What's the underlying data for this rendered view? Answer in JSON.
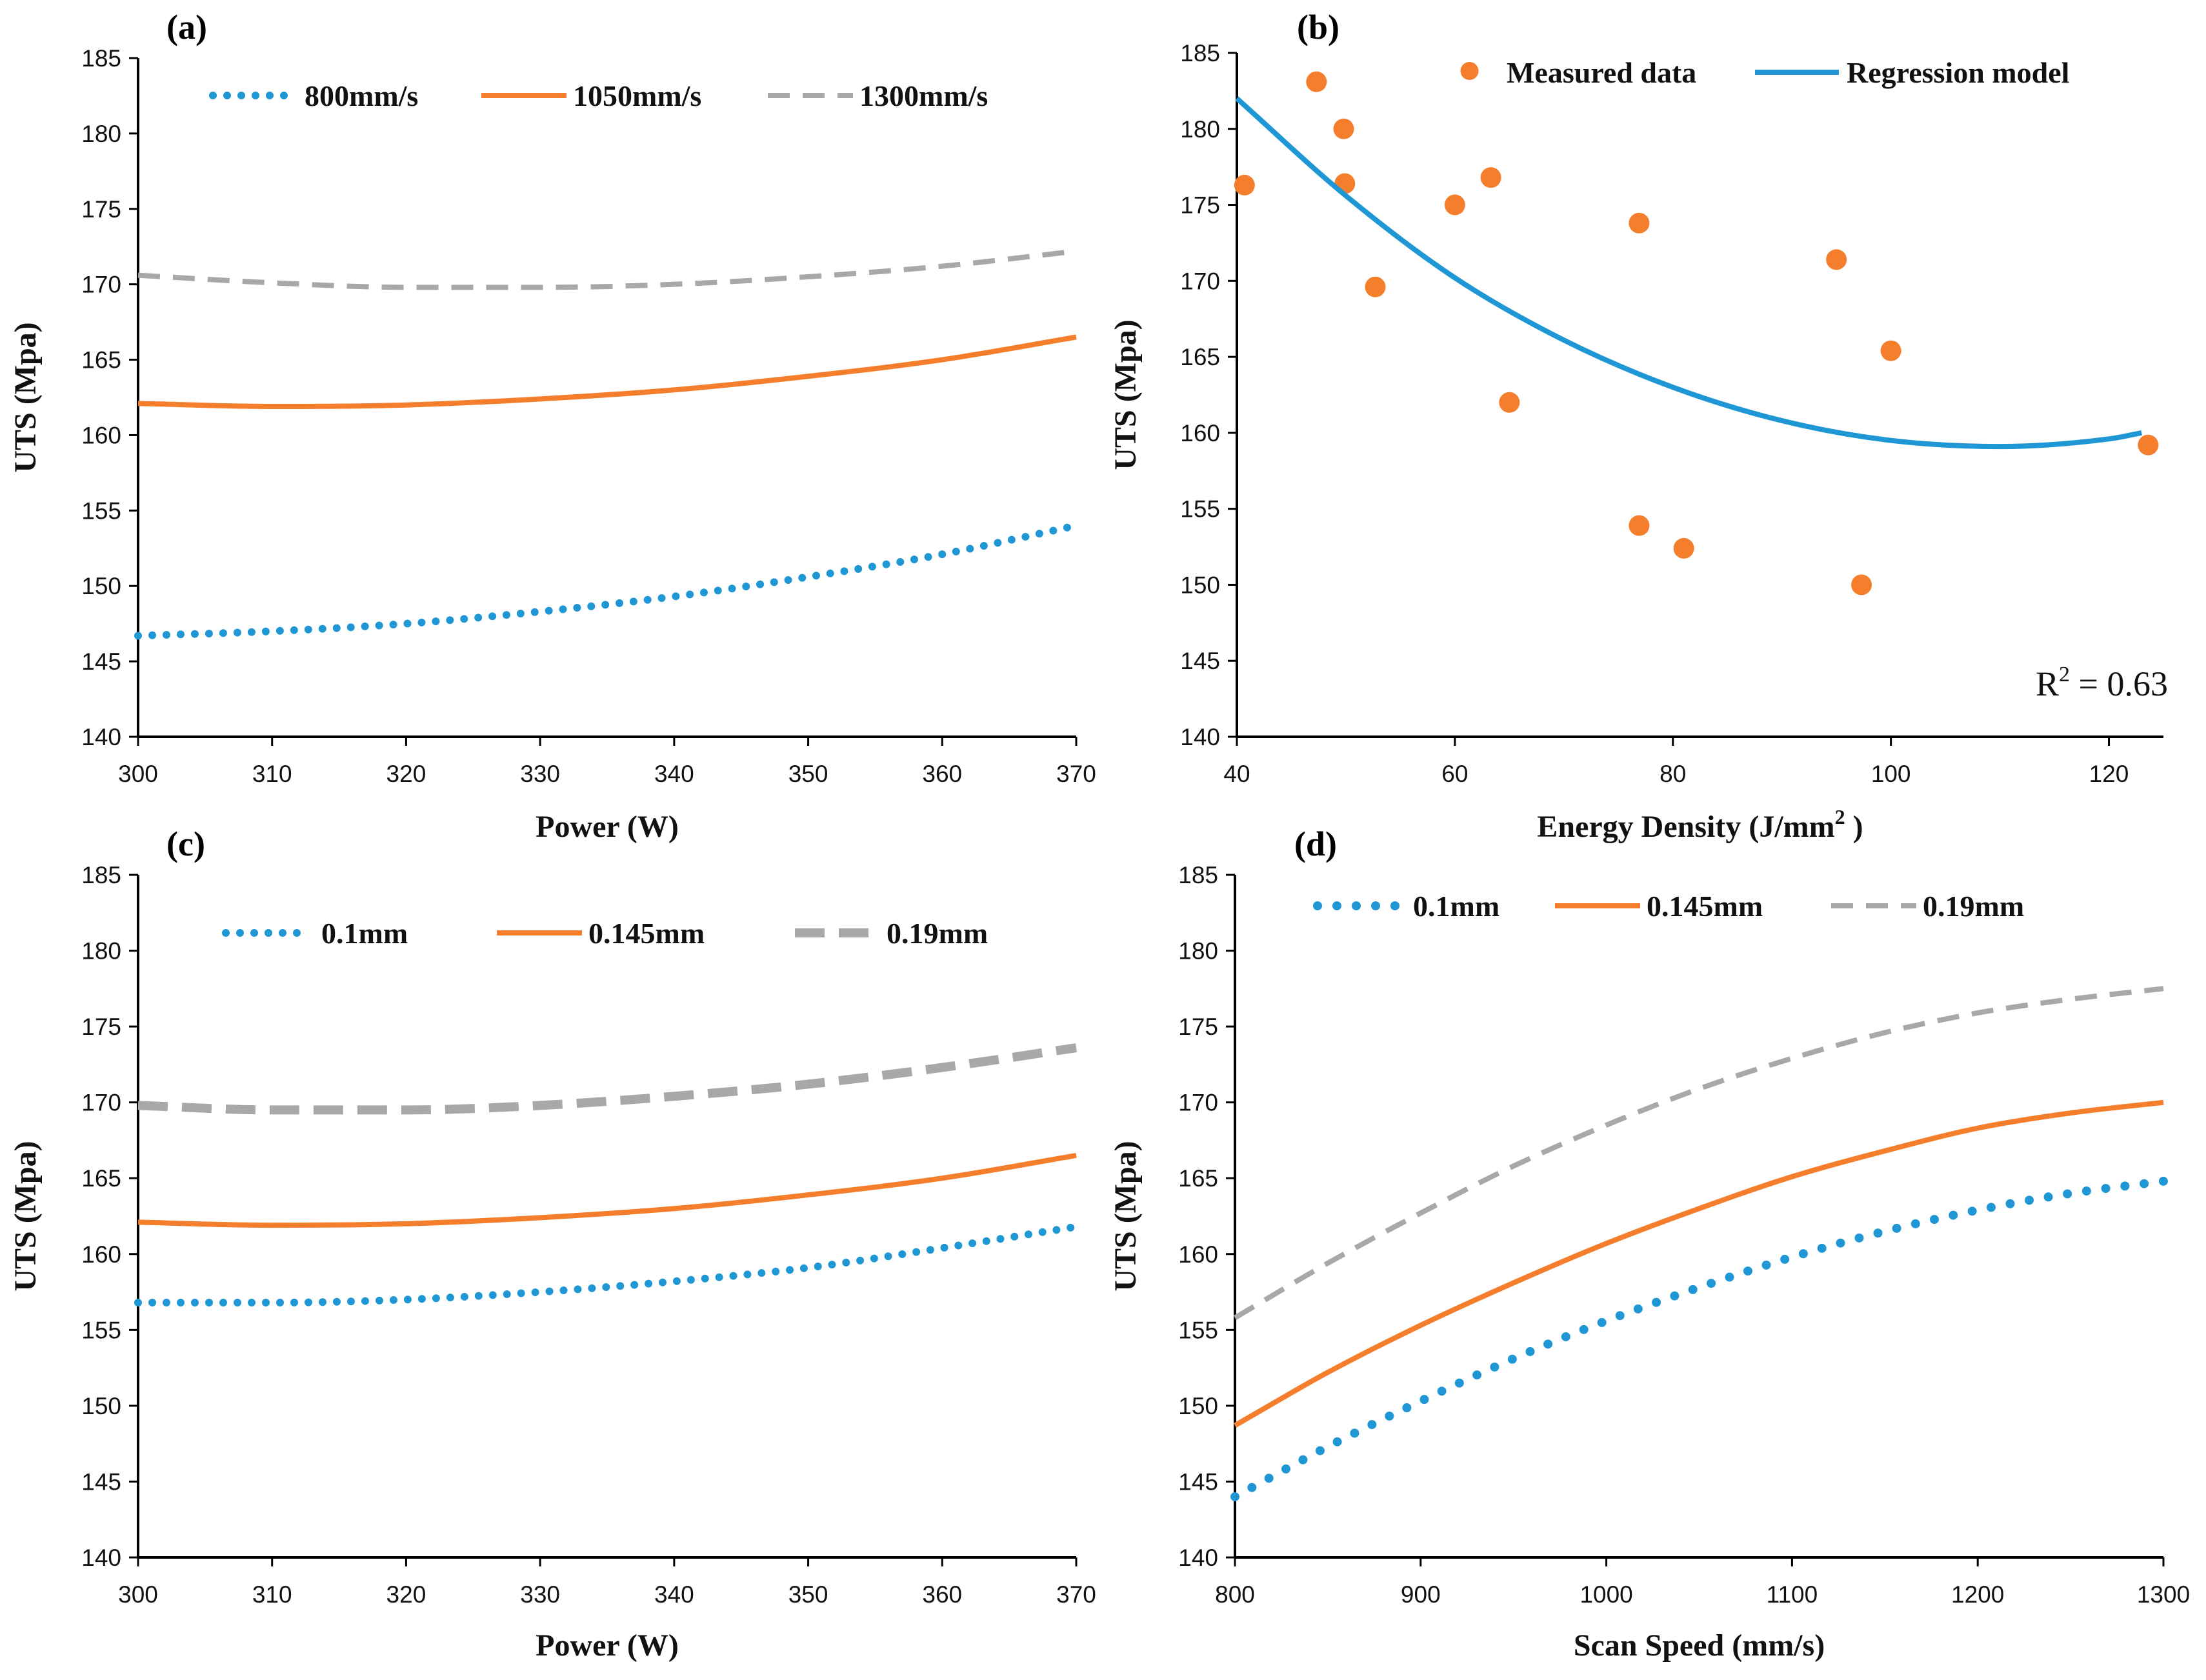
{
  "colors": {
    "blue": "#1f97d4",
    "orange": "#f47e2b",
    "gray": "#a8a8a8",
    "axis": "#000000"
  },
  "chart_data": [
    {
      "id": "a",
      "panel_label": "(a)",
      "type": "line",
      "xlabel": "Power (W)",
      "ylabel": "UTS (Mpa)",
      "xlim": [
        300,
        370
      ],
      "ylim": [
        140,
        185
      ],
      "xticks": [
        300,
        310,
        320,
        330,
        340,
        350,
        360,
        370
      ],
      "yticks": [
        140,
        145,
        150,
        155,
        160,
        165,
        170,
        175,
        180,
        185
      ],
      "legend_position": "top",
      "series": [
        {
          "name": "800mm/s",
          "style": "dotted",
          "color": "#1f97d4",
          "x": [
            300,
            310,
            320,
            330,
            340,
            350,
            360,
            370
          ],
          "y": [
            146.7,
            147.0,
            147.5,
            148.3,
            149.3,
            150.6,
            152.1,
            154.0
          ]
        },
        {
          "name": "1050mm/s",
          "style": "solid",
          "color": "#f47e2b",
          "x": [
            300,
            310,
            320,
            330,
            340,
            350,
            360,
            370
          ],
          "y": [
            162.1,
            161.9,
            162.0,
            162.4,
            163.0,
            163.9,
            165.0,
            166.5
          ]
        },
        {
          "name": "1300mm/s",
          "style": "dashed",
          "color": "#a8a8a8",
          "x": [
            300,
            310,
            320,
            330,
            340,
            350,
            360,
            370
          ],
          "y": [
            170.6,
            170.1,
            169.8,
            169.8,
            170.0,
            170.5,
            171.2,
            172.2
          ]
        }
      ]
    },
    {
      "id": "b",
      "panel_label": "(b)",
      "type": "scatter",
      "xlabel": "Energy  Density (J/mm",
      "xlabel_sup": "2",
      "xlabel_end": " )",
      "ylabel": "UTS (Mpa)",
      "xlim": [
        40,
        125
      ],
      "ylim": [
        140,
        185
      ],
      "xticks": [
        40,
        60,
        80,
        100,
        120
      ],
      "yticks": [
        140,
        145,
        150,
        155,
        160,
        165,
        170,
        175,
        180,
        185
      ],
      "legend_position": "top",
      "annotation": {
        "prefix": "R",
        "sup": "2",
        "suffix": " = 0.63"
      },
      "series": [
        {
          "name": "Measured data",
          "style": "markers",
          "color": "#f47e2b",
          "x": [
            40.7,
            47.3,
            49.8,
            49.9,
            52.7,
            60.0,
            63.3,
            65.0,
            76.9,
            76.9,
            81.0,
            95.0,
            97.3,
            100.0,
            123.6
          ],
          "y": [
            176.3,
            183.1,
            180.0,
            176.4,
            169.6,
            175.0,
            176.8,
            162.0,
            173.8,
            153.9,
            152.4,
            171.4,
            150.0,
            165.4,
            159.2
          ]
        },
        {
          "name": "Regression model",
          "style": "solid",
          "color": "#1f97d4",
          "x": [
            40,
            50,
            60,
            70,
            80,
            90,
            100,
            110,
            120,
            123
          ],
          "y": [
            182.0,
            175.6,
            170.2,
            166.1,
            163.0,
            160.8,
            159.5,
            159.1,
            159.6,
            160.0
          ]
        }
      ]
    },
    {
      "id": "c",
      "panel_label": "(c)",
      "type": "line",
      "xlabel": "Power (W)",
      "ylabel": "UTS (Mpa)",
      "xlim": [
        300,
        370
      ],
      "ylim": [
        140,
        185
      ],
      "xticks": [
        300,
        310,
        320,
        330,
        340,
        350,
        360,
        370
      ],
      "yticks": [
        140,
        145,
        150,
        155,
        160,
        165,
        170,
        175,
        180,
        185
      ],
      "legend_position": "top",
      "series": [
        {
          "name": "0.1mm",
          "style": "dotted",
          "color": "#1f97d4",
          "x": [
            300,
            310,
            320,
            330,
            340,
            350,
            360,
            370
          ],
          "y": [
            156.8,
            156.8,
            157.0,
            157.5,
            158.2,
            159.1,
            160.4,
            161.8
          ]
        },
        {
          "name": "0.145mm",
          "style": "solid",
          "color": "#f47e2b",
          "x": [
            300,
            310,
            320,
            330,
            340,
            350,
            360,
            370
          ],
          "y": [
            162.1,
            161.9,
            162.0,
            162.4,
            163.0,
            163.9,
            165.0,
            166.5
          ]
        },
        {
          "name": "0.19mm",
          "style": "dashed-thick",
          "color": "#a8a8a8",
          "x": [
            300,
            310,
            320,
            330,
            340,
            350,
            360,
            370
          ],
          "y": [
            169.8,
            169.5,
            169.5,
            169.8,
            170.4,
            171.2,
            172.3,
            173.6
          ]
        }
      ]
    },
    {
      "id": "d",
      "panel_label": "(d)",
      "type": "line",
      "xlabel": "Scan Speed (mm/s)",
      "ylabel": "UTS (Mpa)",
      "xlim": [
        800,
        1300
      ],
      "ylim": [
        140,
        185
      ],
      "xticks": [
        800,
        900,
        1000,
        1100,
        1200,
        1300
      ],
      "yticks": [
        140,
        145,
        150,
        155,
        160,
        165,
        170,
        175,
        180,
        185
      ],
      "legend_position": "top",
      "series": [
        {
          "name": "0.1mm",
          "style": "dotted-large",
          "color": "#1f97d4",
          "x": [
            800,
            850,
            900,
            950,
            1000,
            1050,
            1100,
            1150,
            1200,
            1250,
            1300
          ],
          "y": [
            144.0,
            147.3,
            150.3,
            153.1,
            155.6,
            157.8,
            159.8,
            161.5,
            162.9,
            164.0,
            164.8
          ]
        },
        {
          "name": "0.145mm",
          "style": "solid",
          "color": "#f47e2b",
          "x": [
            800,
            850,
            900,
            950,
            1000,
            1050,
            1100,
            1150,
            1200,
            1250,
            1300
          ],
          "y": [
            148.7,
            152.2,
            155.3,
            158.1,
            160.7,
            163.0,
            165.1,
            166.8,
            168.3,
            169.3,
            170.0
          ]
        },
        {
          "name": "0.19mm",
          "style": "dashed",
          "color": "#a8a8a8",
          "x": [
            800,
            850,
            900,
            950,
            1000,
            1050,
            1100,
            1150,
            1200,
            1250,
            1300
          ],
          "y": [
            155.8,
            159.4,
            162.7,
            165.8,
            168.5,
            170.9,
            172.9,
            174.6,
            175.9,
            176.8,
            177.5
          ]
        }
      ]
    }
  ]
}
